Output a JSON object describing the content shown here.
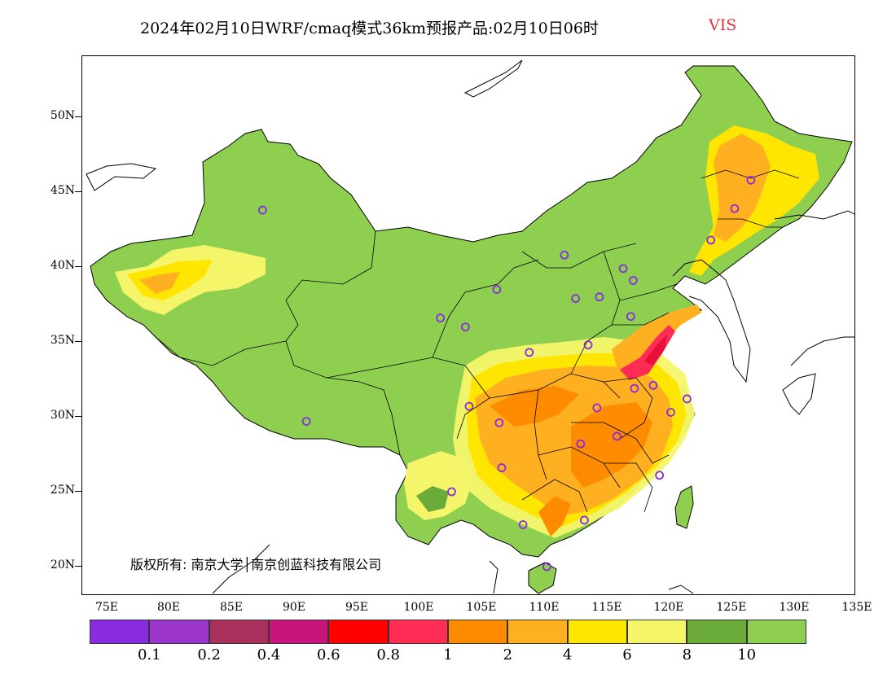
{
  "title": {
    "main": "2024年02月10日WRF/cmaq模式36km预报产品:02月10日06时",
    "variable": "VIS"
  },
  "axes": {
    "lat_labels": [
      "50N",
      "45N",
      "40N",
      "35N",
      "30N",
      "25N",
      "20N"
    ],
    "lon_labels": [
      "75E",
      "80E",
      "85E",
      "90E",
      "95E",
      "100E",
      "105E",
      "110E",
      "115E",
      "120E",
      "125E",
      "130E",
      "135E"
    ]
  },
  "copyright": "版权所有: 南京大学│南京创蓝科技有限公司",
  "legend": {
    "colors": [
      "#8a2be2",
      "#9b35cc",
      "#a8305a",
      "#c7157e",
      "#ff0000",
      "#ff2d55",
      "#ff8c00",
      "#ffb020",
      "#ffe600",
      "#f5f56a",
      "#6aab3a",
      "#8fcf50"
    ],
    "labels": [
      "0.1",
      "0.2",
      "0.4",
      "0.6",
      "0.8",
      "1",
      "2",
      "4",
      "6",
      "8",
      "10"
    ]
  },
  "stations": [
    {
      "lon": 87.6,
      "lat": 43.8
    },
    {
      "lon": 91.1,
      "lat": 29.7
    },
    {
      "lon": 101.8,
      "lat": 36.6
    },
    {
      "lon": 103.8,
      "lat": 36.0
    },
    {
      "lon": 106.3,
      "lat": 38.5
    },
    {
      "lon": 111.7,
      "lat": 40.8
    },
    {
      "lon": 116.4,
      "lat": 39.9
    },
    {
      "lon": 117.2,
      "lat": 39.1
    },
    {
      "lon": 114.5,
      "lat": 38.0
    },
    {
      "lon": 112.6,
      "lat": 37.9
    },
    {
      "lon": 108.9,
      "lat": 34.3
    },
    {
      "lon": 113.6,
      "lat": 34.8
    },
    {
      "lon": 117.0,
      "lat": 36.7
    },
    {
      "lon": 104.1,
      "lat": 30.7
    },
    {
      "lon": 106.5,
      "lat": 29.6
    },
    {
      "lon": 114.3,
      "lat": 30.6
    },
    {
      "lon": 117.3,
      "lat": 31.9
    },
    {
      "lon": 118.8,
      "lat": 32.1
    },
    {
      "lon": 120.2,
      "lat": 30.3
    },
    {
      "lon": 121.5,
      "lat": 31.2
    },
    {
      "lon": 115.9,
      "lat": 28.7
    },
    {
      "lon": 113.0,
      "lat": 28.2
    },
    {
      "lon": 106.7,
      "lat": 26.6
    },
    {
      "lon": 102.7,
      "lat": 25.0
    },
    {
      "lon": 108.4,
      "lat": 22.8
    },
    {
      "lon": 113.3,
      "lat": 23.1
    },
    {
      "lon": 119.3,
      "lat": 26.1
    },
    {
      "lon": 110.3,
      "lat": 20.0
    },
    {
      "lon": 123.4,
      "lat": 41.8
    },
    {
      "lon": 125.3,
      "lat": 43.9
    },
    {
      "lon": 126.6,
      "lat": 45.8
    }
  ]
}
